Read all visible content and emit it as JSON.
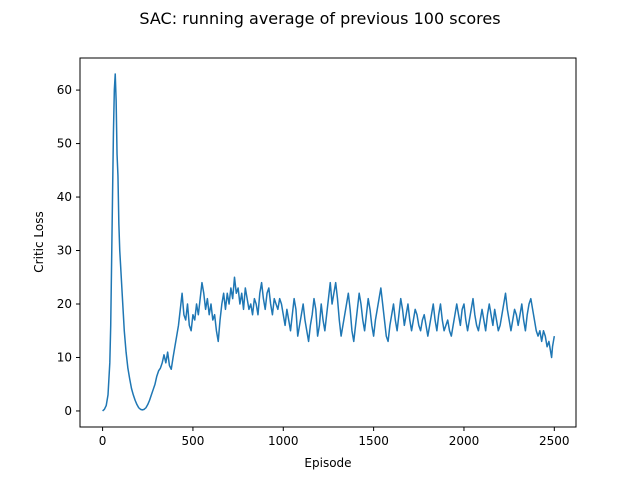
{
  "chart_data": {
    "type": "line",
    "title": "SAC: running average of previous 100 scores",
    "xlabel": "Episode",
    "ylabel": "Critic Loss",
    "xlim": [
      -125,
      2620
    ],
    "ylim": [
      -3,
      66
    ],
    "x_ticks": [
      0,
      500,
      1000,
      1500,
      2000,
      2500
    ],
    "y_ticks": [
      0,
      10,
      20,
      30,
      40,
      50,
      60
    ],
    "grid": false,
    "series": [
      {
        "color": "#1f77b4",
        "points": [
          [
            0,
            0
          ],
          [
            10,
            0.3
          ],
          [
            20,
            1
          ],
          [
            30,
            3
          ],
          [
            40,
            9
          ],
          [
            45,
            16
          ],
          [
            50,
            28
          ],
          [
            55,
            40
          ],
          [
            60,
            52
          ],
          [
            65,
            60
          ],
          [
            70,
            63
          ],
          [
            75,
            58
          ],
          [
            80,
            48
          ],
          [
            85,
            44
          ],
          [
            90,
            35
          ],
          [
            95,
            30
          ],
          [
            100,
            27
          ],
          [
            105,
            24
          ],
          [
            110,
            21
          ],
          [
            115,
            18
          ],
          [
            120,
            15
          ],
          [
            130,
            11
          ],
          [
            140,
            8
          ],
          [
            150,
            6
          ],
          [
            160,
            4.2
          ],
          [
            170,
            3
          ],
          [
            180,
            2
          ],
          [
            190,
            1.2
          ],
          [
            200,
            0.6
          ],
          [
            210,
            0.3
          ],
          [
            220,
            0.2
          ],
          [
            230,
            0.3
          ],
          [
            240,
            0.6
          ],
          [
            250,
            1.2
          ],
          [
            260,
            2
          ],
          [
            270,
            3
          ],
          [
            280,
            4
          ],
          [
            290,
            5
          ],
          [
            300,
            6.5
          ],
          [
            310,
            7.5
          ],
          [
            320,
            8
          ],
          [
            330,
            9
          ],
          [
            340,
            10.5
          ],
          [
            350,
            9
          ],
          [
            360,
            11
          ],
          [
            370,
            8.5
          ],
          [
            380,
            7.8
          ],
          [
            390,
            10
          ],
          [
            400,
            12
          ],
          [
            410,
            14
          ],
          [
            420,
            16
          ],
          [
            430,
            19
          ],
          [
            440,
            22
          ],
          [
            450,
            18
          ],
          [
            460,
            17
          ],
          [
            470,
            20
          ],
          [
            480,
            16
          ],
          [
            490,
            15
          ],
          [
            500,
            18
          ],
          [
            510,
            17
          ],
          [
            520,
            20
          ],
          [
            530,
            18
          ],
          [
            540,
            21
          ],
          [
            550,
            24
          ],
          [
            560,
            22
          ],
          [
            570,
            19
          ],
          [
            580,
            21
          ],
          [
            590,
            18
          ],
          [
            600,
            20
          ],
          [
            610,
            17
          ],
          [
            620,
            18
          ],
          [
            630,
            15
          ],
          [
            640,
            13
          ],
          [
            650,
            17
          ],
          [
            660,
            20
          ],
          [
            670,
            22
          ],
          [
            680,
            19
          ],
          [
            690,
            22
          ],
          [
            700,
            20
          ],
          [
            710,
            23
          ],
          [
            720,
            21
          ],
          [
            730,
            25
          ],
          [
            740,
            22
          ],
          [
            750,
            23
          ],
          [
            760,
            20
          ],
          [
            770,
            22
          ],
          [
            780,
            19
          ],
          [
            790,
            23
          ],
          [
            800,
            21
          ],
          [
            810,
            19
          ],
          [
            820,
            20
          ],
          [
            830,
            18
          ],
          [
            840,
            21
          ],
          [
            850,
            20
          ],
          [
            860,
            18
          ],
          [
            870,
            22
          ],
          [
            880,
            24
          ],
          [
            890,
            21
          ],
          [
            900,
            19
          ],
          [
            910,
            22
          ],
          [
            920,
            23
          ],
          [
            930,
            20
          ],
          [
            940,
            18
          ],
          [
            950,
            21
          ],
          [
            960,
            20
          ],
          [
            970,
            19
          ],
          [
            980,
            21
          ],
          [
            990,
            20
          ],
          [
            1000,
            18
          ],
          [
            1010,
            16
          ],
          [
            1020,
            19
          ],
          [
            1030,
            17
          ],
          [
            1040,
            15
          ],
          [
            1050,
            18
          ],
          [
            1060,
            21
          ],
          [
            1070,
            19
          ],
          [
            1080,
            14
          ],
          [
            1090,
            16
          ],
          [
            1100,
            18
          ],
          [
            1110,
            20
          ],
          [
            1120,
            17
          ],
          [
            1130,
            15
          ],
          [
            1140,
            13
          ],
          [
            1150,
            16
          ],
          [
            1160,
            18
          ],
          [
            1170,
            21
          ],
          [
            1180,
            19
          ],
          [
            1190,
            14
          ],
          [
            1200,
            16
          ],
          [
            1210,
            20
          ],
          [
            1220,
            17
          ],
          [
            1230,
            15
          ],
          [
            1240,
            18
          ],
          [
            1250,
            21
          ],
          [
            1260,
            24
          ],
          [
            1270,
            20
          ],
          [
            1280,
            22
          ],
          [
            1290,
            24
          ],
          [
            1300,
            21
          ],
          [
            1310,
            17
          ],
          [
            1320,
            14
          ],
          [
            1330,
            16
          ],
          [
            1340,
            18
          ],
          [
            1350,
            20
          ],
          [
            1360,
            22
          ],
          [
            1370,
            19
          ],
          [
            1380,
            15
          ],
          [
            1390,
            13
          ],
          [
            1400,
            16
          ],
          [
            1410,
            19
          ],
          [
            1420,
            22
          ],
          [
            1430,
            20
          ],
          [
            1440,
            17
          ],
          [
            1450,
            15
          ],
          [
            1460,
            18
          ],
          [
            1470,
            21
          ],
          [
            1480,
            19
          ],
          [
            1490,
            16
          ],
          [
            1500,
            14
          ],
          [
            1510,
            17
          ],
          [
            1520,
            19
          ],
          [
            1530,
            21
          ],
          [
            1540,
            23
          ],
          [
            1550,
            20
          ],
          [
            1560,
            17
          ],
          [
            1570,
            14
          ],
          [
            1580,
            13
          ],
          [
            1590,
            16
          ],
          [
            1600,
            18
          ],
          [
            1610,
            20
          ],
          [
            1620,
            17
          ],
          [
            1630,
            15
          ],
          [
            1640,
            18
          ],
          [
            1650,
            21
          ],
          [
            1660,
            19
          ],
          [
            1670,
            16
          ],
          [
            1680,
            18
          ],
          [
            1690,
            20
          ],
          [
            1700,
            17
          ],
          [
            1710,
            15
          ],
          [
            1720,
            17
          ],
          [
            1730,
            19
          ],
          [
            1740,
            18
          ],
          [
            1750,
            16
          ],
          [
            1760,
            15
          ],
          [
            1770,
            17
          ],
          [
            1780,
            18
          ],
          [
            1790,
            16
          ],
          [
            1800,
            14
          ],
          [
            1810,
            16
          ],
          [
            1820,
            18
          ],
          [
            1830,
            20
          ],
          [
            1840,
            17
          ],
          [
            1850,
            15
          ],
          [
            1860,
            18
          ],
          [
            1870,
            20
          ],
          [
            1880,
            17
          ],
          [
            1890,
            15
          ],
          [
            1900,
            16
          ],
          [
            1910,
            17
          ],
          [
            1920,
            15
          ],
          [
            1930,
            14
          ],
          [
            1940,
            16
          ],
          [
            1950,
            18
          ],
          [
            1960,
            20
          ],
          [
            1970,
            18
          ],
          [
            1980,
            16
          ],
          [
            1990,
            19
          ],
          [
            2000,
            20
          ],
          [
            2010,
            17
          ],
          [
            2020,
            15
          ],
          [
            2030,
            17
          ],
          [
            2040,
            19
          ],
          [
            2050,
            21
          ],
          [
            2060,
            18
          ],
          [
            2070,
            16
          ],
          [
            2080,
            15
          ],
          [
            2090,
            17
          ],
          [
            2100,
            19
          ],
          [
            2110,
            17
          ],
          [
            2120,
            15
          ],
          [
            2130,
            18
          ],
          [
            2140,
            20
          ],
          [
            2150,
            18
          ],
          [
            2160,
            16
          ],
          [
            2170,
            19
          ],
          [
            2180,
            17
          ],
          [
            2190,
            15
          ],
          [
            2200,
            16
          ],
          [
            2210,
            18
          ],
          [
            2220,
            20
          ],
          [
            2230,
            22
          ],
          [
            2240,
            19
          ],
          [
            2250,
            17
          ],
          [
            2260,
            15
          ],
          [
            2270,
            17
          ],
          [
            2280,
            19
          ],
          [
            2290,
            18
          ],
          [
            2300,
            16
          ],
          [
            2310,
            18
          ],
          [
            2320,
            20
          ],
          [
            2330,
            17
          ],
          [
            2340,
            15
          ],
          [
            2350,
            18
          ],
          [
            2360,
            20
          ],
          [
            2370,
            21
          ],
          [
            2380,
            19
          ],
          [
            2390,
            17
          ],
          [
            2400,
            15
          ],
          [
            2410,
            14
          ],
          [
            2420,
            15
          ],
          [
            2430,
            13
          ],
          [
            2440,
            15
          ],
          [
            2450,
            14
          ],
          [
            2460,
            12
          ],
          [
            2470,
            13
          ],
          [
            2480,
            11
          ],
          [
            2485,
            10
          ],
          [
            2490,
            12
          ],
          [
            2495,
            13
          ],
          [
            2500,
            14
          ]
        ]
      }
    ]
  }
}
